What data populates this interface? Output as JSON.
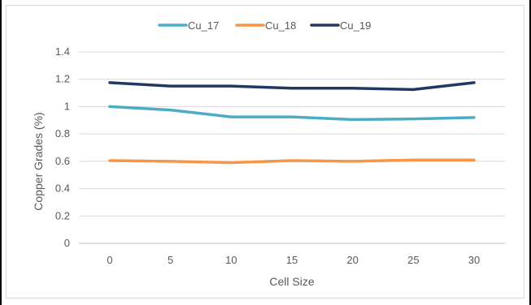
{
  "chart_data": {
    "type": "line",
    "title": "",
    "xlabel": "Cell Size",
    "ylabel": "Copper Grades (%)",
    "x": [
      0,
      5,
      10,
      15,
      20,
      25,
      30
    ],
    "x_tick_labels": [
      "0",
      "5",
      "10",
      "15",
      "20",
      "25",
      "30"
    ],
    "y_tick_labels": [
      "0",
      "0.2",
      "0.4",
      "0.6",
      "0.8",
      "1",
      "1.2",
      "1.4"
    ],
    "y_ticks": [
      0,
      0.2,
      0.4,
      0.6,
      0.8,
      1.0,
      1.2,
      1.4
    ],
    "ylim": [
      0,
      1.4
    ],
    "grid": "horizontal",
    "legend_position": "top",
    "series": [
      {
        "name": "Cu_17",
        "color": "#4bacc6",
        "values": [
          1.0,
          0.975,
          0.925,
          0.925,
          0.905,
          0.91,
          0.92
        ]
      },
      {
        "name": "Cu_18",
        "color": "#f79646",
        "values": [
          0.605,
          0.6,
          0.59,
          0.605,
          0.6,
          0.61,
          0.61
        ]
      },
      {
        "name": "Cu_19",
        "color": "#1f3864",
        "values": [
          1.175,
          1.15,
          1.15,
          1.135,
          1.135,
          1.125,
          1.175
        ]
      }
    ]
  }
}
